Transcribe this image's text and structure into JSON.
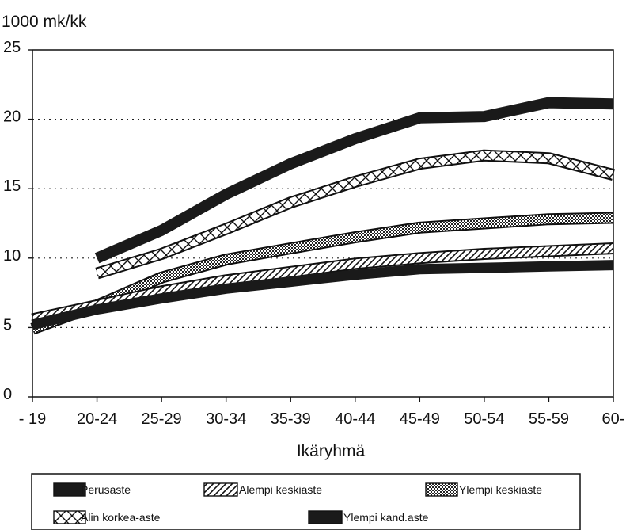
{
  "chart_data": {
    "type": "line",
    "ylabel": "1000 mk/kk",
    "xlabel": "Ikäryhmä",
    "x": [
      "- 19",
      "20-24",
      "25-29",
      "30-34",
      "35-39",
      "40-44",
      "45-49",
      "50-54",
      "55-59",
      "60-"
    ],
    "y_ticks": [
      "0",
      "5",
      "10",
      "15",
      "20",
      "25"
    ],
    "ylim": [
      0,
      25
    ],
    "grid": "horizontal dotted at 5, 10, 15, 20",
    "legend_position": "bottom",
    "series": [
      {
        "name": "Perusaste",
        "pattern": "solid",
        "color": "#1a1a1a",
        "values": [
          5.2,
          6.3,
          7.1,
          7.8,
          8.3,
          8.8,
          9.2,
          9.3,
          9.4,
          9.5
        ]
      },
      {
        "name": "Alempi keskiaste",
        "pattern": "diagonal",
        "color": "#1a1a1a",
        "values": [
          5.6,
          6.6,
          7.6,
          8.4,
          9.0,
          9.6,
          10.0,
          10.3,
          10.5,
          10.7
        ]
      },
      {
        "name": "Ylempi keskiaste",
        "pattern": "dots",
        "color": "#1a1a1a",
        "values": [
          4.9,
          6.6,
          8.6,
          9.9,
          10.7,
          11.5,
          12.2,
          12.5,
          12.8,
          12.9
        ]
      },
      {
        "name": "Alin korkea-aste",
        "pattern": "crosshatch",
        "color": "#1a1a1a",
        "values": [
          null,
          8.9,
          10.3,
          12.1,
          14.0,
          15.5,
          16.8,
          17.4,
          17.2,
          16.0
        ]
      },
      {
        "name": "Ylempi kand.aste",
        "pattern": "solid-dark",
        "color": "#1a1a1a",
        "values": [
          null,
          10.0,
          12.0,
          14.6,
          16.8,
          18.6,
          20.1,
          20.2,
          21.2,
          21.1
        ]
      }
    ]
  }
}
